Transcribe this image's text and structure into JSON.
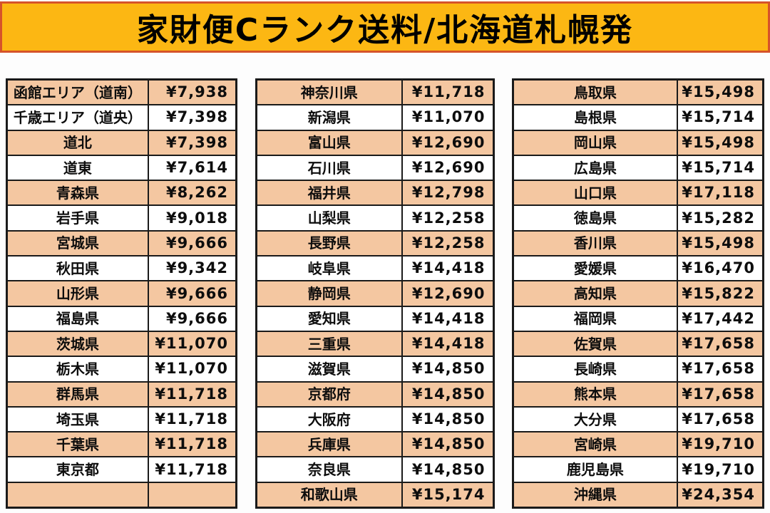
{
  "title": "家財便Cランク送料/北海道札幌発",
  "colors": {
    "title_bg": "#fcb713",
    "title_border": "#d6532a",
    "peach": "#f4c7a1",
    "white": "#ffffff",
    "line": "#1a1a1a",
    "text": "#0d0d0d"
  },
  "chart_data": {
    "type": "table",
    "title": "家財便Cランク送料/北海道札幌発",
    "currency": "JPY",
    "columns": [
      "地域",
      "送料"
    ],
    "legend_position": "none",
    "tables": [
      {
        "name": "hokkaido-tohoku-kanto",
        "rows": [
          [
            "函館エリア（道南）",
            "¥7,938"
          ],
          [
            "千歳エリア（道央）",
            "¥7,398"
          ],
          [
            "道北",
            "¥7,398"
          ],
          [
            "道東",
            "¥7,614"
          ],
          [
            "青森県",
            "¥8,262"
          ],
          [
            "岩手県",
            "¥9,018"
          ],
          [
            "宮城県",
            "¥9,666"
          ],
          [
            "秋田県",
            "¥9,342"
          ],
          [
            "山形県",
            "¥9,666"
          ],
          [
            "福島県",
            "¥9,666"
          ],
          [
            "茨城県",
            "¥11,070"
          ],
          [
            "栃木県",
            "¥11,070"
          ],
          [
            "群馬県",
            "¥11,718"
          ],
          [
            "埼玉県",
            "¥11,718"
          ],
          [
            "千葉県",
            "¥11,718"
          ],
          [
            "東京都",
            "¥11,718"
          ],
          [
            "",
            ""
          ]
        ]
      },
      {
        "name": "koshinetsu-chubu-kansai",
        "rows": [
          [
            "神奈川県",
            "¥11,718"
          ],
          [
            "新潟県",
            "¥11,070"
          ],
          [
            "富山県",
            "¥12,690"
          ],
          [
            "石川県",
            "¥12,690"
          ],
          [
            "福井県",
            "¥12,798"
          ],
          [
            "山梨県",
            "¥12,258"
          ],
          [
            "長野県",
            "¥12,258"
          ],
          [
            "岐阜県",
            "¥14,418"
          ],
          [
            "静岡県",
            "¥12,690"
          ],
          [
            "愛知県",
            "¥14,418"
          ],
          [
            "三重県",
            "¥14,418"
          ],
          [
            "滋賀県",
            "¥14,850"
          ],
          [
            "京都府",
            "¥14,850"
          ],
          [
            "大阪府",
            "¥14,850"
          ],
          [
            "兵庫県",
            "¥14,850"
          ],
          [
            "奈良県",
            "¥14,850"
          ],
          [
            "和歌山県",
            "¥15,174"
          ]
        ]
      },
      {
        "name": "chugoku-shikoku-kyushu-okinawa",
        "rows": [
          [
            "鳥取県",
            "¥15,498"
          ],
          [
            "島根県",
            "¥15,714"
          ],
          [
            "岡山県",
            "¥15,498"
          ],
          [
            "広島県",
            "¥15,714"
          ],
          [
            "山口県",
            "¥17,118"
          ],
          [
            "徳島県",
            "¥15,282"
          ],
          [
            "香川県",
            "¥15,498"
          ],
          [
            "愛媛県",
            "¥16,470"
          ],
          [
            "高知県",
            "¥15,822"
          ],
          [
            "福岡県",
            "¥17,442"
          ],
          [
            "佐賀県",
            "¥17,658"
          ],
          [
            "長崎県",
            "¥17,658"
          ],
          [
            "熊本県",
            "¥17,658"
          ],
          [
            "大分県",
            "¥17,658"
          ],
          [
            "宮崎県",
            "¥19,710"
          ],
          [
            "鹿児島県",
            "¥19,710"
          ],
          [
            "沖縄県",
            "¥24,354"
          ]
        ]
      }
    ]
  }
}
